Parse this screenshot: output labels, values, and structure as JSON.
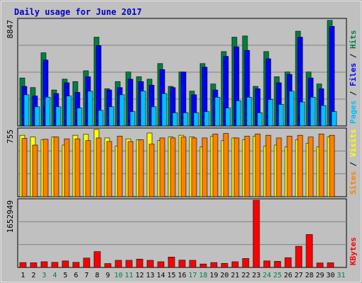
{
  "chart_data": {
    "type": "bar",
    "title": "Daily usage for June 2017",
    "categories": [
      "1",
      "2",
      "3",
      "4",
      "5",
      "6",
      "7",
      "8",
      "9",
      "10",
      "11",
      "12",
      "13",
      "14",
      "15",
      "16",
      "17",
      "18",
      "19",
      "20",
      "21",
      "22",
      "23",
      "24",
      "25",
      "26",
      "27",
      "28",
      "29",
      "30",
      "31"
    ],
    "weekend_days": [
      "3",
      "4",
      "10",
      "11",
      "17",
      "18",
      "24",
      "25",
      "31"
    ],
    "colors": {
      "title": "#0000cc",
      "weekday_label": "#000000",
      "weekend_label": "#008040",
      "hits": "#008040",
      "files": "#0000ff",
      "pages": "#00c0ff",
      "visits": "#ffff00",
      "sites": "#ff8000",
      "kbytes": "#ff0000",
      "panel": "#c0c0c0",
      "grid": "#808080"
    },
    "panels": [
      {
        "name": "hits-files-pages",
        "max_label": "8847",
        "ylim": [
          0,
          8847
        ],
        "legend": [
          {
            "text": "Pages",
            "color": "#00c0ff"
          },
          {
            "text": " / ",
            "color": "#000000"
          },
          {
            "text": "Files",
            "color": "#0000ff"
          },
          {
            "text": " / ",
            "color": "#000000"
          },
          {
            "text": "Hits",
            "color": "#008040"
          }
        ],
        "series": [
          {
            "name": "Hits",
            "values": [
              4000,
              3200,
              6100,
              3000,
              3900,
              3700,
              4600,
              7400,
              3100,
              3700,
              4500,
              4100,
              3900,
              5200,
              3300,
              4500,
              2900,
              5200,
              3500,
              6200,
              7400,
              7500,
              3300,
              6200,
              4100,
              4500,
              7900,
              4500,
              3500,
              8800
            ]
          },
          {
            "name": "Files",
            "values": [
              3300,
              2500,
              5500,
              2700,
              3600,
              2800,
              4100,
              6700,
              3000,
              3200,
              3900,
              3700,
              3400,
              4700,
              3200,
              4500,
              2600,
              4900,
              3000,
              5800,
              6600,
              6300,
              3100,
              5600,
              3600,
              4300,
              7400,
              4000,
              3100,
              8300
            ]
          },
          {
            "name": "Pages",
            "values": [
              2600,
              1600,
              2400,
              1600,
              2500,
              1500,
              2900,
              1300,
              1600,
              2600,
              1200,
              2900,
              1600,
              2700,
              1100,
              1100,
              1100,
              1200,
              2400,
              1500,
              2100,
              2400,
              1100,
              2200,
              1800,
              2900,
              2000,
              2400,
              1700,
              1200
            ]
          }
        ]
      },
      {
        "name": "visits-sites",
        "max_label": "755",
        "ylim": [
          0,
          755
        ],
        "legend": [
          {
            "text": "Sites",
            "color": "#ff8000"
          },
          {
            "text": " / ",
            "color": "#000000"
          },
          {
            "text": "Visits",
            "color": "#ffff00"
          }
        ],
        "series": [
          {
            "name": "Visits",
            "values": [
              690,
              670,
              640,
              670,
              580,
              690,
              700,
              755,
              660,
              570,
              650,
              640,
              715,
              630,
              670,
              690,
              670,
              560,
              680,
              630,
              660,
              640,
              680,
              570,
              580,
              560,
              640,
              600,
              560,
              670
            ]
          },
          {
            "name": "Sites",
            "values": [
              655,
              580,
              645,
              670,
              650,
              650,
              630,
              660,
              620,
              680,
              620,
              640,
              590,
              660,
              660,
              670,
              660,
              660,
              705,
              710,
              660,
              680,
              705,
              690,
              660,
              680,
              690,
              670,
              705,
              690
            ]
          }
        ]
      },
      {
        "name": "kbytes",
        "max_label": "1652949",
        "ylim": [
          0,
          1652949
        ],
        "legend": [
          {
            "text": "KBytes",
            "color": "#ff0000"
          }
        ],
        "series": [
          {
            "name": "KBytes",
            "values": [
              120000,
              115000,
              140000,
              125000,
              160000,
              125000,
              230000,
              390000,
              95000,
              175000,
              175000,
              205000,
              175000,
              140000,
              255000,
              180000,
              175000,
              85000,
              120000,
              100000,
              140000,
              220000,
              1652949,
              160000,
              150000,
              240000,
              520000,
              810000,
              110000,
              115000
            ]
          }
        ]
      }
    ]
  }
}
